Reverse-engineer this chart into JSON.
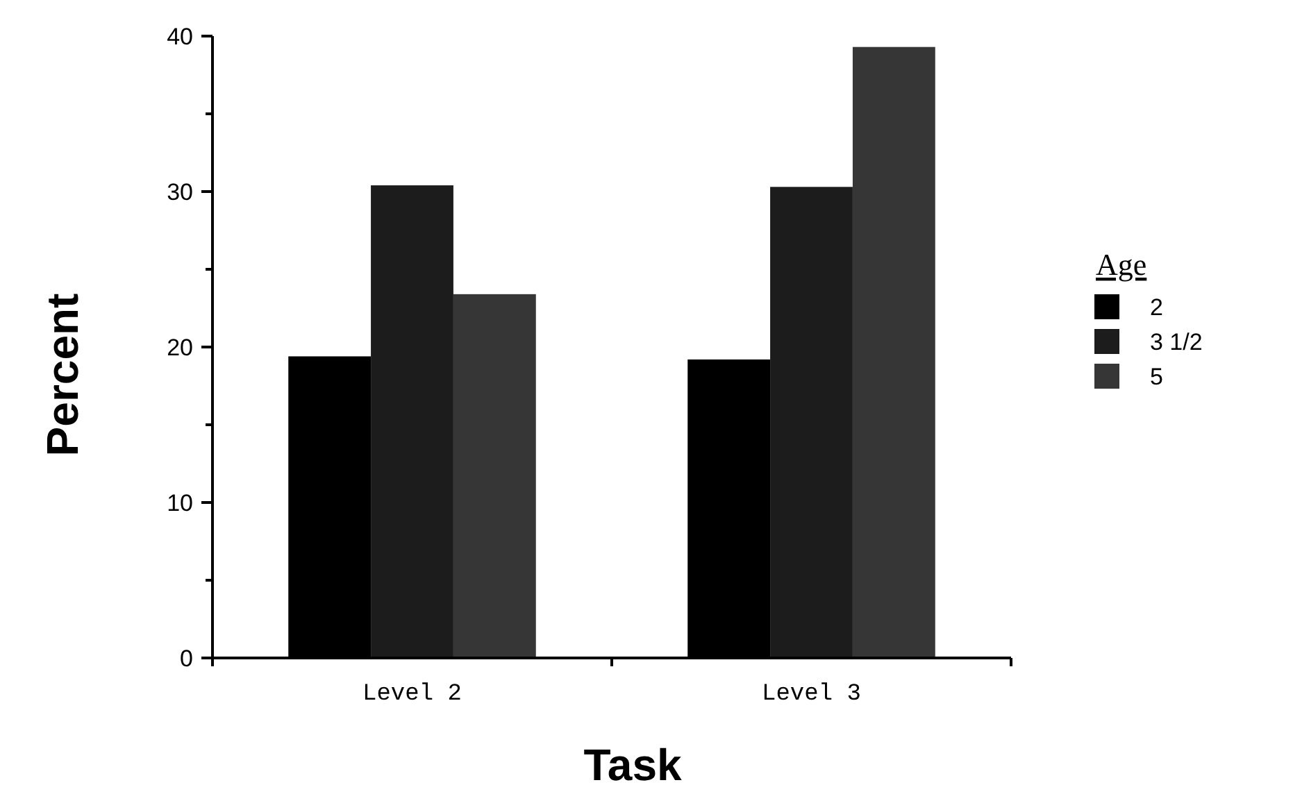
{
  "chart_data": {
    "type": "bar",
    "xlabel": "Task",
    "ylabel": "Percent",
    "legend_title": "Age",
    "legend": "right",
    "categories": [
      "Level 2",
      "Level 3"
    ],
    "series": [
      {
        "name": "2",
        "color": "#000000",
        "values": [
          19.4,
          19.2
        ]
      },
      {
        "name": "3 1/2",
        "color": "#1c1c1c",
        "values": [
          30.4,
          30.3
        ]
      },
      {
        "name": "5",
        "color": "#363636",
        "values": [
          23.4,
          39.3
        ]
      }
    ],
    "ylim": [
      0,
      40
    ],
    "yticks": [
      0,
      {
        "value": 5,
        "label": null
      },
      10,
      {
        "value": 15,
        "label": null
      },
      20,
      {
        "value": 25,
        "label": null
      },
      30,
      {
        "value": 35,
        "label": null
      },
      40
    ],
    "grid": false
  }
}
